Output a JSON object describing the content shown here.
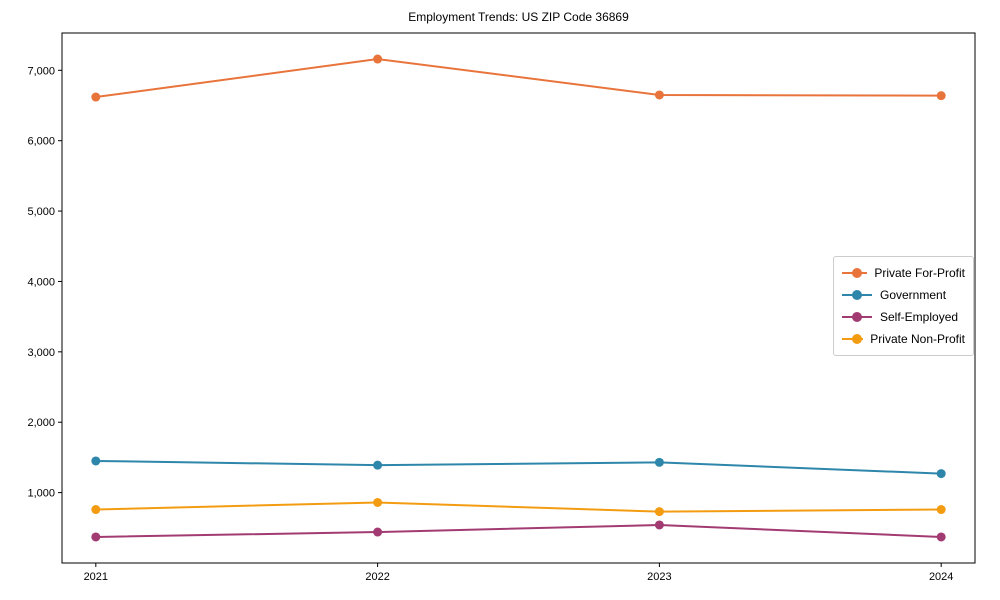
{
  "chart_data": {
    "type": "line",
    "title": "Employment Trends: US ZIP Code 36869",
    "x": [
      2021,
      2022,
      2023,
      2024
    ],
    "x_tick_labels": [
      "2021",
      "2022",
      "2023",
      "2024"
    ],
    "y_ticks": [
      1000,
      2000,
      3000,
      4000,
      5000,
      6000,
      7000
    ],
    "y_tick_labels": [
      "1,000",
      "2,000",
      "3,000",
      "4,000",
      "5,000",
      "6,000",
      "7,000"
    ],
    "xlim": [
      2020.88,
      2024.12
    ],
    "ylim": [
      0,
      7530
    ],
    "grid": false,
    "legend_position": "center right",
    "series": [
      {
        "name": "Private For-Profit",
        "color": "#E8743B",
        "values": [
          6620,
          7160,
          6650,
          6640
        ]
      },
      {
        "name": "Government",
        "color": "#2E86AB",
        "values": [
          1450,
          1390,
          1430,
          1270
        ]
      },
      {
        "name": "Self-Employed",
        "color": "#A23B72",
        "values": [
          370,
          440,
          540,
          370
        ]
      },
      {
        "name": "Private Non-Profit",
        "color": "#F39C12",
        "values": [
          760,
          860,
          730,
          760
        ]
      }
    ]
  }
}
